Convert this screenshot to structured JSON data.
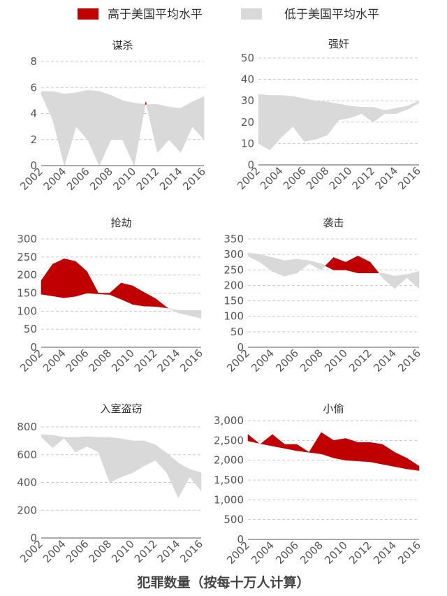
{
  "legend": {
    "above_label": "高于美国平均水平",
    "below_label": "低于美国平均水平"
  },
  "footer": "犯罪数量（按每十万人计算）",
  "colors": {
    "above": "#c00000",
    "below": "#d9d9d9",
    "grid": "#c8c8c8",
    "axis": "#555555"
  },
  "chart_data": [
    {
      "type": "area",
      "title": "谋杀",
      "years": [
        2002,
        2003,
        2004,
        2005,
        2006,
        2007,
        2008,
        2009,
        2010,
        2011,
        2012,
        2013,
        2014,
        2015,
        2016
      ],
      "x_ticks": [
        "2002",
        "2004",
        "2006",
        "2008",
        "2010",
        "2012",
        "2014",
        "2016"
      ],
      "ylim": [
        0,
        8
      ],
      "y_ticks": [
        "0",
        "2",
        "4",
        "6",
        "8"
      ],
      "series": [
        {
          "name": "美国平均",
          "values": [
            5.7,
            5.7,
            5.5,
            5.6,
            5.8,
            5.7,
            5.4,
            5.0,
            4.8,
            4.7,
            4.7,
            4.5,
            4.4,
            4.9,
            5.3
          ]
        },
        {
          "values": [
            5.5,
            3.5,
            0,
            3,
            2,
            0,
            2,
            2,
            0,
            4.9,
            1,
            2,
            1,
            3,
            2
          ]
        }
      ]
    },
    {
      "type": "area",
      "title": "强奸",
      "years": [
        2002,
        2003,
        2004,
        2005,
        2006,
        2007,
        2008,
        2009,
        2010,
        2011,
        2012,
        2013,
        2014,
        2015,
        2016
      ],
      "x_ticks": [
        "2002",
        "2004",
        "2006",
        "2008",
        "2010",
        "2012",
        "2014",
        "2016"
      ],
      "ylim": [
        0,
        50
      ],
      "y_ticks": [
        "0",
        "10",
        "20",
        "30",
        "40",
        "50"
      ],
      "series": [
        {
          "name": "美国平均",
          "values": [
            33,
            32.5,
            32.5,
            32,
            31,
            30,
            29.5,
            28.5,
            27.5,
            27,
            27,
            25.5,
            26.5,
            27.5,
            30
          ]
        },
        {
          "values": [
            10,
            7,
            13,
            18,
            11,
            12,
            14,
            21,
            22,
            24,
            20,
            24,
            24,
            26,
            29
          ]
        }
      ]
    },
    {
      "type": "area",
      "title": "抢劫",
      "years": [
        2002,
        2003,
        2004,
        2005,
        2006,
        2007,
        2008,
        2009,
        2010,
        2011,
        2012,
        2013,
        2014,
        2015,
        2016
      ],
      "x_ticks": [
        "2002",
        "2004",
        "2006",
        "2008",
        "2010",
        "2012",
        "2014",
        "2016"
      ],
      "ylim": [
        0,
        300
      ],
      "y_ticks": [
        "0",
        "50",
        "100",
        "150",
        "200",
        "250",
        "300"
      ],
      "series": [
        {
          "name": "美国平均",
          "values": [
            147,
            142,
            137,
            141,
            150,
            148,
            146,
            133,
            119,
            114,
            113,
            109,
            102,
            102,
            102
          ]
        },
        {
          "values": [
            185,
            230,
            245,
            238,
            210,
            150,
            150,
            178,
            170,
            152,
            135,
            110,
            95,
            88,
            80
          ]
        }
      ]
    },
    {
      "type": "area",
      "title": "袭击",
      "years": [
        2002,
        2003,
        2004,
        2005,
        2006,
        2007,
        2008,
        2009,
        2010,
        2011,
        2012,
        2013,
        2014,
        2015,
        2016
      ],
      "x_ticks": [
        "2002",
        "2004",
        "2006",
        "2008",
        "2010",
        "2012",
        "2014",
        "2016"
      ],
      "ylim": [
        0,
        350
      ],
      "y_ticks": [
        "0",
        "50",
        "100",
        "150",
        "200",
        "250",
        "300",
        "350"
      ],
      "series": [
        {
          "name": "美国平均",
          "values": [
            305,
            300,
            290,
            280,
            285,
            280,
            270,
            250,
            250,
            240,
            240,
            240,
            230,
            235,
            245
          ]
        },
        {
          "values": [
            295,
            275,
            245,
            230,
            240,
            270,
            250,
            290,
            275,
            295,
            275,
            225,
            190,
            225,
            190
          ]
        }
      ]
    },
    {
      "type": "area",
      "title": "入室盗窃",
      "years": [
        2002,
        2003,
        2004,
        2005,
        2006,
        2007,
        2008,
        2009,
        2010,
        2011,
        2012,
        2013,
        2014,
        2015,
        2016
      ],
      "x_ticks": [
        "2002",
        "2004",
        "2006",
        "2008",
        "2010",
        "2012",
        "2014",
        "2016"
      ],
      "ylim": [
        0,
        800
      ],
      "y_ticks": [
        "0",
        "200",
        "400",
        "600",
        "800"
      ],
      "series": [
        {
          "name": "美国平均",
          "values": [
            745,
            740,
            725,
            725,
            730,
            725,
            725,
            715,
            700,
            700,
            670,
            610,
            540,
            495,
            470
          ]
        },
        {
          "values": [
            730,
            650,
            720,
            620,
            660,
            620,
            400,
            440,
            470,
            520,
            560,
            470,
            290,
            440,
            340
          ]
        }
      ]
    },
    {
      "type": "area",
      "title": "小偷",
      "years": [
        2002,
        2003,
        2004,
        2005,
        2006,
        2007,
        2008,
        2009,
        2010,
        2011,
        2012,
        2013,
        2014,
        2015,
        2016
      ],
      "x_ticks": [
        "2002",
        "2004",
        "2006",
        "2008",
        "2010",
        "2012",
        "2014",
        "2016"
      ],
      "ylim": [
        0,
        3000
      ],
      "y_ticks": [
        "0",
        "500",
        "1,000",
        "1,500",
        "2,000",
        "2,500",
        "3,000"
      ],
      "series": [
        {
          "name": "美国平均",
          "values": [
            2490,
            2420,
            2360,
            2300,
            2240,
            2200,
            2160,
            2060,
            2000,
            1980,
            1960,
            1900,
            1840,
            1780,
            1740
          ]
        },
        {
          "values": [
            2650,
            2400,
            2650,
            2400,
            2400,
            2200,
            2700,
            2500,
            2550,
            2450,
            2450,
            2400,
            2200,
            2050,
            1850
          ]
        }
      ]
    }
  ]
}
